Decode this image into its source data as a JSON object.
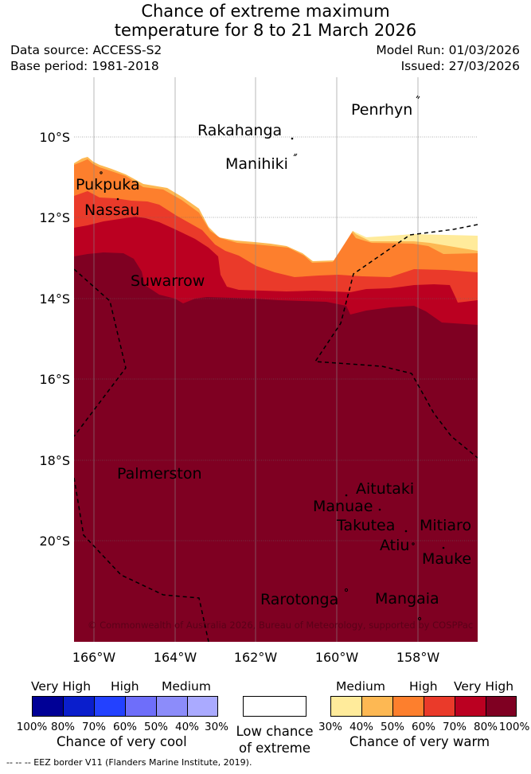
{
  "title_line1": "Chance of extreme maximum",
  "title_line2": "temperature for 8 to 21 March 2026",
  "data_source": "Data source: ACCESS-S2",
  "base_period": "Base period: 1981-2018",
  "model_run": "Model Run: 01/03/2026",
  "issued": "Issued: 27/03/2026",
  "axes": {
    "lat_labels": [
      "10°S",
      "12°S",
      "14°S",
      "16°S",
      "18°S",
      "20°S"
    ],
    "lon_labels": [
      "166°W",
      "164°W",
      "162°W",
      "160°W",
      "158°W"
    ]
  },
  "places": {
    "penrhyn": "Penrhyn",
    "rakahanga": "Rakahanga",
    "manihiki": "Manihiki",
    "pukapuka": "Pukpuka",
    "nassau": "Nassau",
    "suwarrow": "Suwarrow",
    "palmerston": "Palmerston",
    "aitutaki": "Aitutaki",
    "manuae": "Manuae",
    "takutea": "Takutea",
    "mitiaro": "Mitiaro",
    "atiu": "Atiu",
    "mauke": "Mauke",
    "rarotonga": "Rarotonga",
    "mangaia": "Mangaia"
  },
  "copyright": "© Commonwealth of Australia 2026, Bureau of Meteorology, supported by COSPPac",
  "legend": {
    "cool": {
      "levels": [
        "Very High",
        "High",
        "Medium"
      ],
      "colors": [
        "#000096",
        "#0a1ecc",
        "#2341ff",
        "#6e6efa",
        "#8c8cfa",
        "#aaaaff"
      ],
      "ticks": [
        "100%",
        "80%",
        "70%",
        "60%",
        "50%",
        "40%",
        "30%"
      ],
      "caption": "Chance of very cool"
    },
    "neutral": {
      "color": "#ffffff",
      "caption_line1": "Low chance",
      "caption_line2": "of extreme"
    },
    "warm": {
      "levels": [
        "Medium",
        "High",
        "Very High"
      ],
      "colors": [
        "#ffeb9b",
        "#fdb853",
        "#fd7f2d",
        "#ea3a2a",
        "#bb0021",
        "#7f0022"
      ],
      "ticks": [
        "30%",
        "40%",
        "50%",
        "60%",
        "70%",
        "80%",
        "100%"
      ],
      "caption": "Chance of very warm"
    }
  },
  "footer": "--  --  -- EEZ border V11 (Flanders Marine Institute, 2019)."
}
